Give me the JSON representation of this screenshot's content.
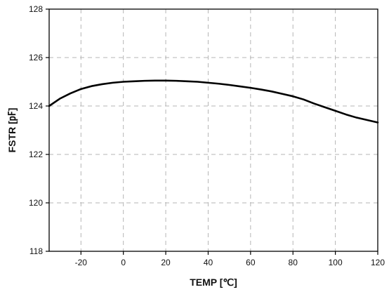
{
  "chart_data": {
    "type": "line",
    "title": "",
    "xlabel": "TEMP [℃]",
    "ylabel": "FSTR [㎊]",
    "xlim": [
      -35,
      120
    ],
    "ylim": [
      118,
      128
    ],
    "xticks": [
      -20,
      0,
      20,
      40,
      60,
      80,
      100,
      120
    ],
    "yticks": [
      118,
      120,
      122,
      124,
      126,
      128
    ],
    "grid": true,
    "grid_style": "dashed",
    "series": [
      {
        "color": "#000000",
        "x": [
          -35,
          -30,
          -25,
          -20,
          -15,
          -10,
          -5,
          0,
          5,
          10,
          15,
          20,
          25,
          30,
          35,
          40,
          45,
          50,
          55,
          60,
          65,
          70,
          75,
          80,
          85,
          90,
          95,
          100,
          105,
          110,
          115,
          120
        ],
        "y": [
          124.0,
          124.3,
          124.52,
          124.7,
          124.82,
          124.9,
          124.96,
          125.0,
          125.02,
          125.04,
          125.05,
          125.05,
          125.04,
          125.02,
          125.0,
          124.96,
          124.92,
          124.87,
          124.81,
          124.75,
          124.68,
          124.6,
          124.5,
          124.4,
          124.27,
          124.1,
          123.95,
          123.8,
          123.65,
          123.52,
          123.42,
          123.32
        ]
      }
    ]
  }
}
